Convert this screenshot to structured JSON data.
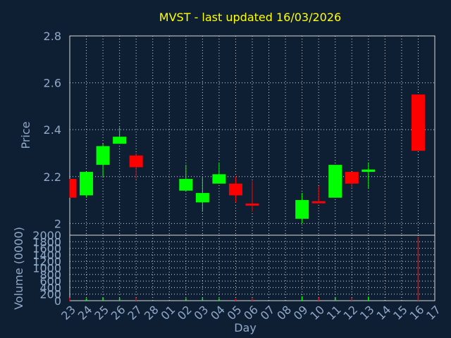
{
  "chart_data": {
    "type": "candlestick",
    "title": "MVST - last updated 16/03/2026",
    "xlabel": "Day",
    "colors": {
      "background": "#0f1f33",
      "up": "#00ff00",
      "down": "#ff0000",
      "title": "#ffff00",
      "label": "#8fa9c9",
      "grid": "#d9d9d9"
    },
    "x_categories": [
      "23",
      "24",
      "25",
      "26",
      "27",
      "28",
      "01",
      "02",
      "03",
      "04",
      "05",
      "06",
      "07",
      "08",
      "09",
      "10",
      "11",
      "12",
      "13",
      "14",
      "15",
      "16",
      "17"
    ],
    "price_panel": {
      "ylabel": "Price",
      "ylim": [
        1.95,
        2.8
      ],
      "yticks": [
        "2",
        "2.2",
        "2.4",
        "2.6",
        "2.8"
      ],
      "ytick_values": [
        2.0,
        2.2,
        2.4,
        2.6,
        2.8
      ],
      "candles": [
        {
          "day": "23",
          "open": 2.19,
          "close": 2.11,
          "high": 2.19,
          "low": 2.11
        },
        {
          "day": "24",
          "open": 2.12,
          "close": 2.22,
          "high": 2.22,
          "low": 2.11
        },
        {
          "day": "25",
          "open": 2.25,
          "close": 2.33,
          "high": 2.34,
          "low": 2.2
        },
        {
          "day": "26",
          "open": 2.34,
          "close": 2.37,
          "high": 2.41,
          "low": 2.34
        },
        {
          "day": "27",
          "open": 2.29,
          "close": 2.24,
          "high": 2.3,
          "low": 2.19
        },
        {
          "day": "02",
          "open": 2.14,
          "close": 2.19,
          "high": 2.25,
          "low": 2.14
        },
        {
          "day": "03",
          "open": 2.09,
          "close": 2.13,
          "high": 2.2,
          "low": 2.05
        },
        {
          "day": "04",
          "open": 2.17,
          "close": 2.21,
          "high": 2.26,
          "low": 2.17
        },
        {
          "day": "05",
          "open": 2.17,
          "close": 2.12,
          "high": 2.2,
          "low": 2.09
        },
        {
          "day": "06",
          "open": 2.085,
          "close": 2.078,
          "high": 2.18,
          "low": 2.05
        },
        {
          "day": "09",
          "open": 2.02,
          "close": 2.1,
          "high": 2.13,
          "low": 2.0
        },
        {
          "day": "10",
          "open": 2.095,
          "close": 2.088,
          "high": 2.16,
          "low": 2.088
        },
        {
          "day": "11",
          "open": 2.11,
          "close": 2.25,
          "high": 2.25,
          "low": 2.11
        },
        {
          "day": "12",
          "open": 2.22,
          "close": 2.17,
          "high": 2.22,
          "low": 2.15
        },
        {
          "day": "13",
          "open": 2.22,
          "close": 2.23,
          "high": 2.26,
          "low": 2.15
        },
        {
          "day": "16",
          "open": 2.55,
          "close": 2.31,
          "high": 2.55,
          "low": 2.31
        }
      ]
    },
    "volume_panel": {
      "ylabel": "Volume (0000)",
      "ylim": [
        0,
        2000
      ],
      "yticks": [
        "0",
        "200",
        "400",
        "600",
        "800",
        "1000",
        "1200",
        "1400",
        "1600",
        "1800",
        "2000"
      ],
      "ytick_values": [
        0,
        200,
        400,
        600,
        800,
        1000,
        1200,
        1400,
        1600,
        1800,
        2000
      ],
      "bars": [
        {
          "day": "23",
          "value": 90,
          "dir": "down"
        },
        {
          "day": "24",
          "value": 70,
          "dir": "up"
        },
        {
          "day": "25",
          "value": 90,
          "dir": "up"
        },
        {
          "day": "26",
          "value": 80,
          "dir": "up"
        },
        {
          "day": "27",
          "value": 90,
          "dir": "down"
        },
        {
          "day": "02",
          "value": 70,
          "dir": "up"
        },
        {
          "day": "03",
          "value": 80,
          "dir": "up"
        },
        {
          "day": "04",
          "value": 70,
          "dir": "up"
        },
        {
          "day": "05",
          "value": 60,
          "dir": "down"
        },
        {
          "day": "06",
          "value": 70,
          "dir": "down"
        },
        {
          "day": "09",
          "value": 130,
          "dir": "up"
        },
        {
          "day": "10",
          "value": 90,
          "dir": "down"
        },
        {
          "day": "11",
          "value": 110,
          "dir": "up"
        },
        {
          "day": "12",
          "value": 90,
          "dir": "down"
        },
        {
          "day": "13",
          "value": 120,
          "dir": "up"
        },
        {
          "day": "16",
          "value": 1950,
          "dir": "down"
        }
      ]
    }
  }
}
